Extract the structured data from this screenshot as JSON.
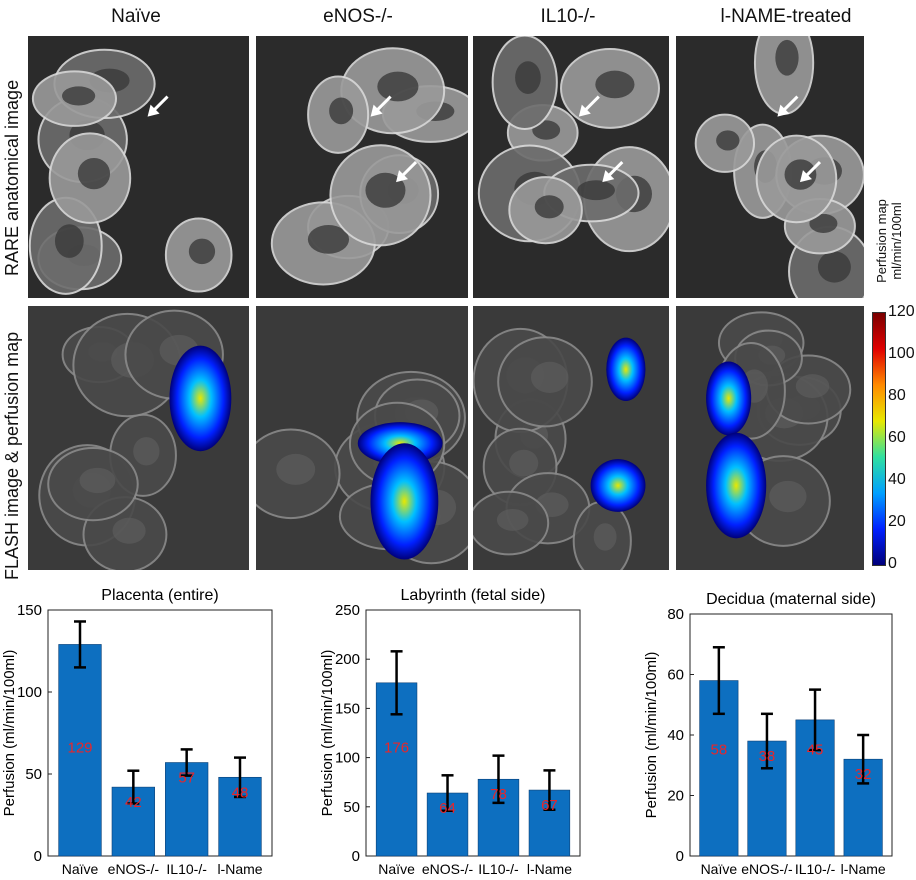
{
  "columns": [
    "Naïve",
    "eNOS-/-",
    "IL10-/-",
    "l-NAME-treated"
  ],
  "rows": [
    "RARE anatomical image",
    "FLASH image & perfusion map"
  ],
  "colorbar": {
    "title_line1": "Perfusion map",
    "title_line2": "ml/min/100ml",
    "ticks": [
      "120",
      "100",
      "80",
      "60",
      "40",
      "20",
      "0"
    ],
    "colors": [
      "#7a0000",
      "#e00000",
      "#ff8a00",
      "#e8e800",
      "#30e0a0",
      "#00a0ff",
      "#0020ff",
      "#00007a"
    ]
  },
  "chart_data": [
    {
      "type": "bar",
      "title": "Placenta (entire)",
      "ylabel": "Perfusion (ml/min/100ml)",
      "categories": [
        "Naïve",
        "eNOS-/-",
        "IL10-/-",
        "l-Name"
      ],
      "values": [
        129,
        42,
        57,
        48
      ],
      "errors": [
        14,
        10,
        8,
        12
      ],
      "labels": [
        "129",
        "42",
        "57",
        "48"
      ],
      "ylim": [
        0,
        150
      ],
      "yticks": [
        0,
        50,
        100,
        150
      ],
      "bar_color": "#0d6fc0",
      "label_color": "#e8262a"
    },
    {
      "type": "bar",
      "title": "Labyrinth (fetal side)",
      "ylabel": "Perfusion (ml/min/100ml)",
      "categories": [
        "Naïve",
        "eNOS-/-",
        "IL10-/-",
        "l-Name"
      ],
      "values": [
        176,
        64,
        78,
        67
      ],
      "errors": [
        32,
        18,
        24,
        20
      ],
      "labels": [
        "176",
        "64",
        "78",
        "67"
      ],
      "ylim": [
        0,
        250
      ],
      "yticks": [
        0,
        50,
        100,
        150,
        200,
        250
      ],
      "bar_color": "#0d6fc0",
      "label_color": "#e8262a"
    },
    {
      "type": "bar",
      "title": "Decidua (maternal side)",
      "ylabel": "Perfusion (ml/min/100ml)",
      "categories": [
        "Naïve",
        "eNOS-/-",
        "IL10-/-",
        "l-Name"
      ],
      "values": [
        58,
        38,
        45,
        32
      ],
      "errors": [
        11,
        9,
        10,
        8
      ],
      "labels": [
        "58",
        "38",
        "45",
        "32"
      ],
      "ylim": [
        0,
        80
      ],
      "yticks": [
        0,
        20,
        40,
        60,
        80
      ],
      "bar_color": "#0d6fc0",
      "label_color": "#e8262a"
    }
  ]
}
